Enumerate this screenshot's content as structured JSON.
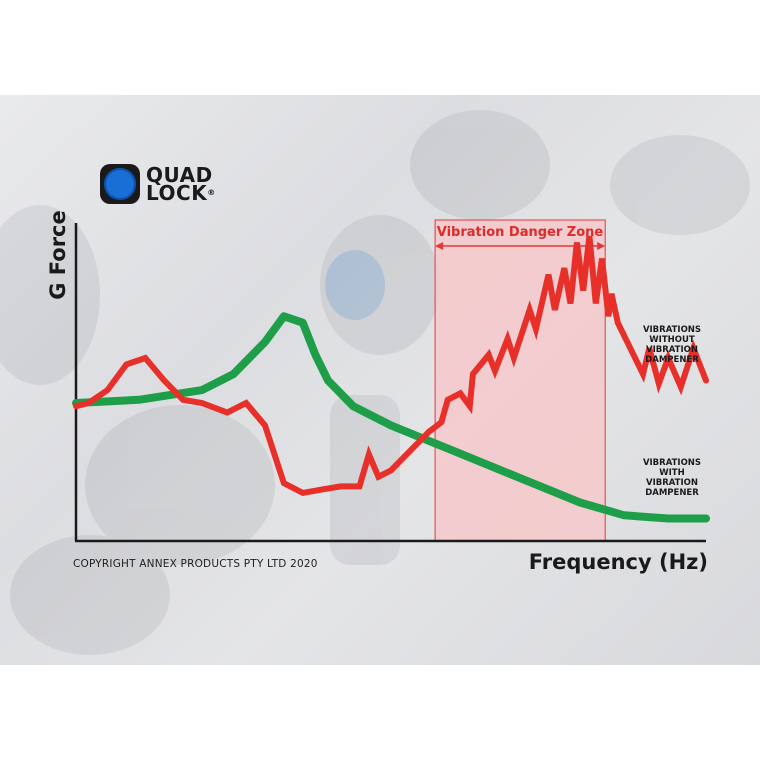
{
  "brand": {
    "line1": "QUAD",
    "line2": "LOCK",
    "reg": "®"
  },
  "copyright": "COPYRIGHT ANNEX PRODUCTS PTY LTD 2020",
  "colors": {
    "red_series": "#e8302b",
    "green_series": "#1f9e4a",
    "danger_fill": "#f6c7c9",
    "danger_border": "#e0393c",
    "logo_blue": "#1a6fd6"
  },
  "chart_data": {
    "type": "line",
    "xlabel": "Frequency (Hz)",
    "ylabel": "G Force",
    "xlim": [
      0,
      100
    ],
    "ylim": [
      0,
      100
    ],
    "grid": false,
    "annotations": [
      {
        "type": "shaded-range",
        "label": "Vibration Danger Zone",
        "x": [
          57,
          84
        ]
      }
    ],
    "series": [
      {
        "label_lines": [
          "VIBRATIONS",
          "WITHOUT",
          "VIBRATION",
          "DAMPENER"
        ],
        "color": "#e8302b",
        "x": [
          0,
          2,
          5,
          8,
          11,
          14,
          17,
          20,
          24,
          27,
          30,
          33,
          36,
          39,
          42,
          45,
          46.5,
          48,
          50,
          52,
          54,
          56,
          58,
          59,
          61,
          62.5,
          63,
          65.5,
          66.5,
          68.5,
          69.5,
          72,
          73,
          75,
          76,
          77.5,
          78.5,
          79.5,
          80.5,
          81.5,
          82.5,
          83.5,
          84.5,
          85,
          86,
          88,
          90,
          91,
          92.5,
          94,
          96,
          98,
          100
        ],
        "y": [
          42,
          43,
          47,
          55,
          57,
          50,
          44,
          43,
          40,
          43,
          36,
          18,
          15,
          16,
          17,
          17,
          27,
          20,
          22,
          26,
          30,
          34,
          37,
          44,
          46,
          42,
          52,
          58,
          53,
          63,
          57,
          72,
          66,
          83,
          72,
          85,
          74,
          93,
          78,
          95,
          74,
          88,
          70,
          77,
          68,
          60,
          52,
          60,
          49,
          57,
          48,
          60,
          50
        ]
      },
      {
        "label_lines": [
          "VIBRATIONS",
          "WITH",
          "VIBRATION",
          "DAMPENER"
        ],
        "color": "#1f9e4a",
        "x": [
          0,
          10,
          20,
          25,
          30,
          33,
          36,
          38,
          40,
          44,
          50,
          60,
          70,
          80,
          87,
          94,
          100
        ],
        "y": [
          43,
          44,
          47,
          52,
          62,
          70,
          68,
          58,
          50,
          42,
          36,
          28,
          20,
          12,
          8,
          7,
          7
        ]
      }
    ]
  }
}
